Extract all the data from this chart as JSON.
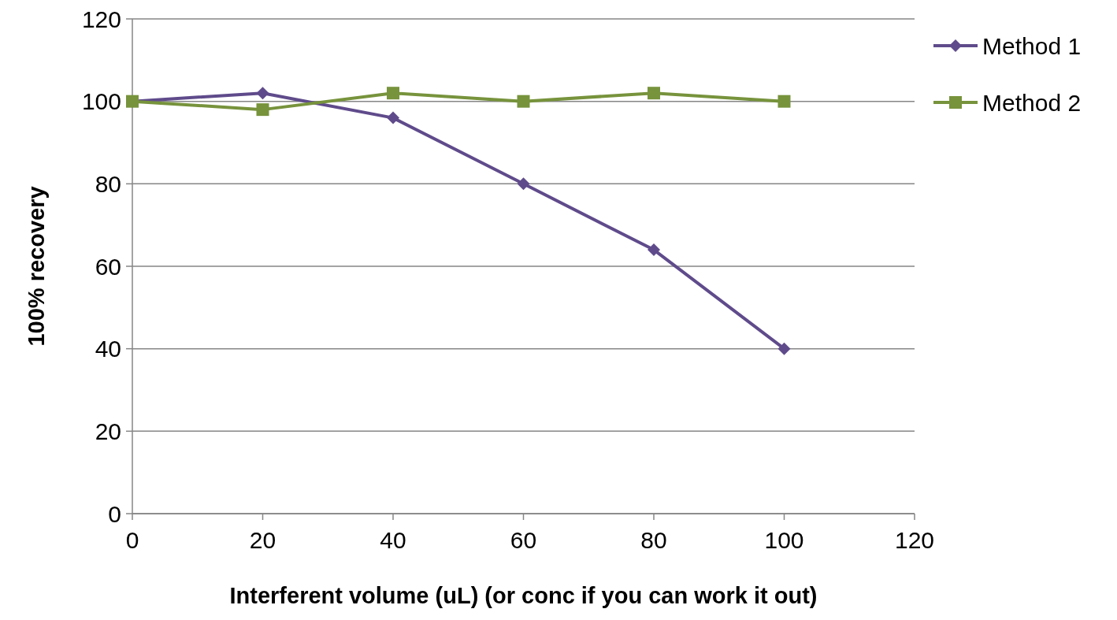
{
  "chart_data": {
    "type": "line",
    "xlabel": "Interferent volume (uL) (or conc if you can work it out)",
    "ylabel": "100% recovery",
    "x": [
      0,
      20,
      40,
      60,
      80,
      100
    ],
    "xlim": [
      0,
      120
    ],
    "xticks": [
      0,
      20,
      40,
      60,
      80,
      100,
      120
    ],
    "ylim": [
      0,
      120
    ],
    "yticks": [
      0,
      20,
      40,
      60,
      80,
      100,
      120
    ],
    "grid": "y",
    "legend": "right",
    "series": [
      {
        "name": "Method 1",
        "color": "#5f4b8b",
        "marker": "diamond",
        "values": [
          100,
          102,
          96,
          80,
          64,
          40
        ]
      },
      {
        "name": "Method 2",
        "color": "#77933c",
        "marker": "square",
        "values": [
          100,
          98,
          102,
          100,
          102,
          100
        ]
      }
    ]
  }
}
